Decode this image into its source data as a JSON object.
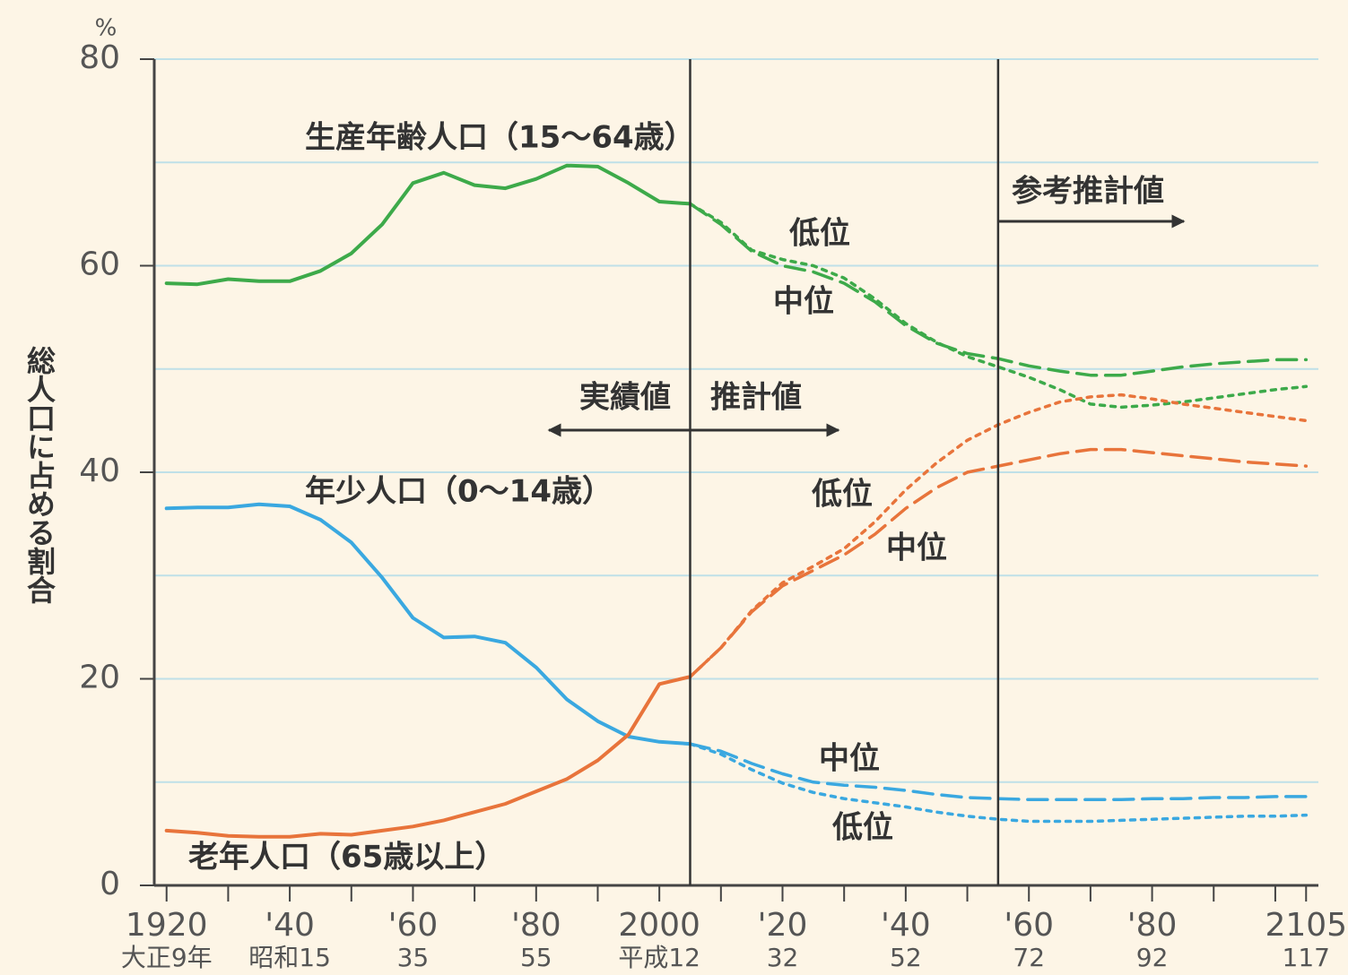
{
  "chart_data": {
    "type": "line",
    "y_unit": "%",
    "ylabel": "総人口に占める割合",
    "ylim": [
      0,
      80
    ],
    "yticks": [
      0,
      20,
      40,
      60,
      80
    ],
    "y_minor_grid": [
      10,
      30,
      50,
      70
    ],
    "grid": true,
    "xlim": [
      1918,
      2107
    ],
    "xticks": [
      {
        "value": 1920,
        "label": "1920"
      },
      {
        "value": 1940,
        "label": "'40"
      },
      {
        "value": 1960,
        "label": "'60"
      },
      {
        "value": 1980,
        "label": "'80"
      },
      {
        "value": 2000,
        "label": "2000"
      },
      {
        "value": 2020,
        "label": "'20"
      },
      {
        "value": 2040,
        "label": "'40"
      },
      {
        "value": 2060,
        "label": "'60"
      },
      {
        "value": 2080,
        "label": "'80"
      },
      {
        "value": 2105,
        "label": "2105"
      }
    ],
    "xtick_era_labels": [
      "大正9年",
      "昭和15",
      "35",
      "55",
      "平成12",
      "32",
      "52",
      "72",
      "92",
      "117"
    ],
    "x_minor_ticks": [
      1930,
      1950,
      1970,
      1990,
      2010,
      2030,
      2050,
      2070,
      2090,
      2100
    ],
    "vlines": [
      2005,
      2055
    ],
    "annotations": {
      "working": "生産年齢人口（15～64歳）",
      "young": "年少人口（0～14歳）",
      "old": "老年人口（65歳以上）",
      "actual": "実績値",
      "projected": "推計値",
      "reference": "参考推計値",
      "low": "低位",
      "middle": "中位"
    },
    "series": [
      {
        "color": "#3daa4a",
        "style": "solid",
        "x": [
          1920,
          1925,
          1930,
          1935,
          1940,
          1945,
          1950,
          1955,
          1960,
          1965,
          1970,
          1975,
          1980,
          1985,
          1990,
          1995,
          2000,
          2005
        ],
        "values": [
          58.3,
          58.2,
          58.7,
          58.5,
          58.5,
          59.5,
          61.2,
          64,
          68,
          69,
          67.8,
          67.5,
          68.4,
          69.7,
          69.6,
          68,
          66.2,
          66
        ]
      },
      {
        "color": "#3daa4a",
        "style": "dashed",
        "x": [
          2005,
          2010,
          2015,
          2020,
          2025,
          2030,
          2035,
          2040,
          2045,
          2050,
          2055,
          2060,
          2065,
          2070,
          2075,
          2080,
          2085,
          2090,
          2095,
          2100,
          2105
        ],
        "values": [
          66,
          64,
          61.4,
          60,
          59.4,
          58.3,
          56.5,
          54.2,
          52.5,
          51.5,
          51,
          50.3,
          49.8,
          49.4,
          49.4,
          49.8,
          50.2,
          50.5,
          50.7,
          50.9,
          50.9
        ]
      },
      {
        "color": "#3daa4a",
        "style": "dotted",
        "x": [
          2005,
          2010,
          2015,
          2020,
          2025,
          2030,
          2035,
          2040,
          2045,
          2050,
          2055,
          2060,
          2065,
          2070,
          2075,
          2080,
          2085,
          2090,
          2095,
          2100,
          2105
        ],
        "values": [
          66,
          64.2,
          61.5,
          60.6,
          60,
          58.8,
          56.8,
          54.4,
          52.6,
          51.2,
          50.2,
          49.2,
          48,
          46.6,
          46.3,
          46.5,
          46.8,
          47.2,
          47.6,
          48,
          48.3
        ]
      },
      {
        "color": "#3aa8e0",
        "style": "solid",
        "x": [
          1920,
          1925,
          1930,
          1935,
          1940,
          1945,
          1950,
          1955,
          1960,
          1965,
          1970,
          1975,
          1980,
          1985,
          1990,
          1995,
          2000,
          2005
        ],
        "values": [
          36.5,
          36.6,
          36.6,
          36.9,
          36.7,
          35.4,
          33.2,
          29.8,
          25.9,
          24,
          24.1,
          23.5,
          21.1,
          18,
          15.9,
          14.4,
          13.9,
          13.7
        ]
      },
      {
        "color": "#3aa8e0",
        "style": "dashed",
        "x": [
          2005,
          2010,
          2015,
          2020,
          2025,
          2030,
          2035,
          2040,
          2045,
          2050,
          2055,
          2060,
          2065,
          2070,
          2075,
          2080,
          2085,
          2090,
          2095,
          2100,
          2105
        ],
        "values": [
          13.7,
          13,
          11.8,
          10.8,
          10,
          9.7,
          9.5,
          9.2,
          8.8,
          8.5,
          8.4,
          8.3,
          8.3,
          8.3,
          8.3,
          8.4,
          8.4,
          8.5,
          8.5,
          8.6,
          8.6
        ]
      },
      {
        "color": "#3aa8e0",
        "style": "dotted",
        "x": [
          2005,
          2010,
          2015,
          2020,
          2025,
          2030,
          2035,
          2040,
          2045,
          2050,
          2055,
          2060,
          2065,
          2070,
          2075,
          2080,
          2085,
          2090,
          2095,
          2100,
          2105
        ],
        "values": [
          13.7,
          12.7,
          11.2,
          9.9,
          9,
          8.4,
          8,
          7.6,
          7.1,
          6.7,
          6.4,
          6.2,
          6.2,
          6.2,
          6.3,
          6.4,
          6.5,
          6.6,
          6.7,
          6.7,
          6.8
        ]
      },
      {
        "color": "#e8743b",
        "style": "solid",
        "x": [
          1920,
          1925,
          1930,
          1935,
          1940,
          1945,
          1950,
          1955,
          1960,
          1965,
          1970,
          1975,
          1980,
          1985,
          1990,
          1995,
          2000,
          2005
        ],
        "values": [
          5.3,
          5.1,
          4.8,
          4.7,
          4.7,
          5,
          4.9,
          5.3,
          5.7,
          6.3,
          7.1,
          7.9,
          9.1,
          10.3,
          12.1,
          14.6,
          19.5,
          20.2
        ]
      },
      {
        "color": "#e8743b",
        "style": "dashed",
        "x": [
          2005,
          2010,
          2015,
          2020,
          2025,
          2030,
          2035,
          2040,
          2045,
          2050,
          2055,
          2060,
          2065,
          2070,
          2075,
          2080,
          2085,
          2090,
          2095,
          2100,
          2105
        ],
        "values": [
          20.2,
          23,
          26.5,
          29,
          30.5,
          32,
          34,
          36.5,
          38.5,
          40,
          40.6,
          41.2,
          41.8,
          42.2,
          42.2,
          41.9,
          41.6,
          41.3,
          41,
          40.8,
          40.6
        ]
      },
      {
        "color": "#e8743b",
        "style": "dotted",
        "x": [
          2005,
          2010,
          2015,
          2020,
          2025,
          2030,
          2035,
          2040,
          2045,
          2050,
          2055,
          2060,
          2065,
          2070,
          2075,
          2080,
          2085,
          2090,
          2095,
          2100,
          2105
        ],
        "values": [
          20.2,
          23,
          26.6,
          29.3,
          30.9,
          32.6,
          35.2,
          38.3,
          40.9,
          43.1,
          44.6,
          45.8,
          46.8,
          47.3,
          47.5,
          47.1,
          46.6,
          46.2,
          45.8,
          45.4,
          45
        ]
      }
    ]
  }
}
